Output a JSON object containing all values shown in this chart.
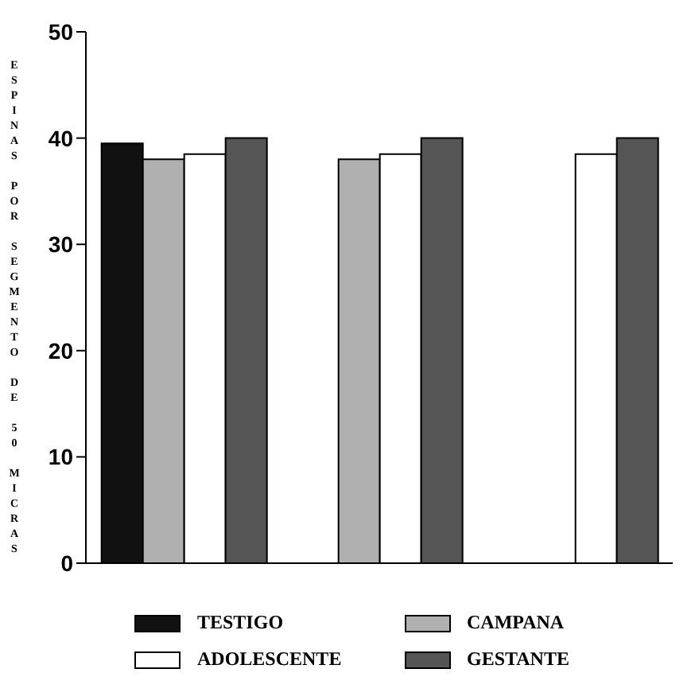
{
  "chart_data": {
    "type": "bar",
    "ylabel": "ESPINAS POR SEGMENTO DE 50 MICRAS",
    "categories": [
      null,
      null,
      null
    ],
    "series": [
      {
        "name": "TESTIGO",
        "color": "#111111",
        "values": [
          39.5,
          null,
          null
        ]
      },
      {
        "name": "CAMPANA",
        "color": "#b0b0b0",
        "values": [
          38,
          38,
          null
        ]
      },
      {
        "name": "ADOLESCENTE",
        "color": "#ffffff",
        "values": [
          38.5,
          38.5,
          38.5
        ]
      },
      {
        "name": "GESTANTE",
        "color": "#555555",
        "values": [
          40,
          40,
          40
        ]
      }
    ],
    "ylim": [
      0,
      50
    ],
    "yticks": [
      0,
      10,
      20,
      30,
      40,
      50
    ],
    "grid": false,
    "legend": "bottom",
    "tick_labels": "y"
  }
}
